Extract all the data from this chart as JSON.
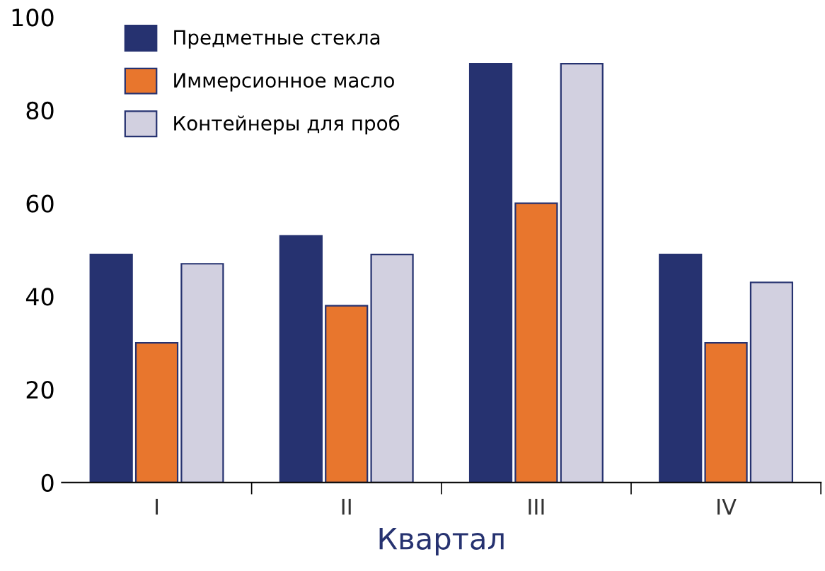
{
  "chart_data": {
    "type": "bar",
    "xlabel": "Квартал",
    "categories": [
      "I",
      "II",
      "III",
      "IV"
    ],
    "series": [
      {
        "name": "Предметные стекла",
        "color": "#263270",
        "values": [
          49,
          53,
          90,
          49
        ]
      },
      {
        "name": "Иммерсионное масло",
        "color": "#e8762d",
        "values": [
          30,
          38,
          60,
          30
        ]
      },
      {
        "name": "Контейнеры для проб",
        "color": "#d2d0e0",
        "values": [
          47,
          49,
          90,
          43
        ]
      }
    ],
    "ylim": [
      0,
      100
    ],
    "yticks": [
      0,
      20,
      40,
      60,
      80,
      100
    ],
    "grid": false,
    "legend": "top left"
  }
}
